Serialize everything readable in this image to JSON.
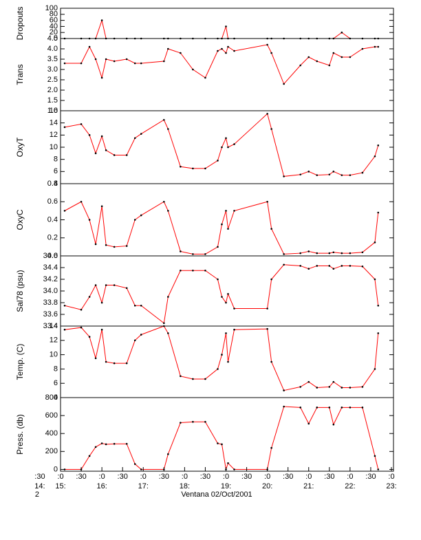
{
  "chart_data": [
    {
      "type": "line",
      "ylabel": "Dropouts",
      "xlim": [
        15,
        23.05
      ],
      "ylim": [
        0,
        100
      ],
      "yticks": [
        0,
        20,
        40,
        60,
        80,
        100
      ],
      "line_color": "#ff0000",
      "point_color": "#000000",
      "x": [
        15.1,
        15.5,
        15.7,
        15.85,
        16.0,
        16.1,
        16.3,
        16.6,
        16.8,
        16.95,
        17.5,
        17.6,
        17.9,
        18.2,
        18.5,
        18.8,
        18.9,
        19.0,
        19.05,
        19.2,
        20.0,
        20.1,
        20.4,
        20.8,
        21.0,
        21.2,
        21.5,
        21.6,
        21.8,
        22.0,
        22.3,
        22.6,
        22.68
      ],
      "values": [
        0,
        0,
        0,
        0,
        60,
        0,
        0,
        0,
        0,
        0,
        0,
        0,
        0,
        0,
        0,
        0,
        0,
        40,
        0,
        0,
        0,
        0,
        0,
        0,
        0,
        0,
        0,
        0,
        20,
        0,
        0,
        0,
        0
      ]
    },
    {
      "type": "line",
      "ylabel": "Trans",
      "xlim": [
        15,
        23.05
      ],
      "ylim": [
        1,
        4.5
      ],
      "yticks": [
        {
          "value": 1,
          "label": "1.0"
        },
        1.5,
        {
          "value": 2,
          "label": "2.0"
        },
        2.5,
        {
          "value": 3,
          "label": "3.0"
        },
        3.5,
        {
          "value": 4,
          "label": "4.0"
        },
        4.5
      ],
      "line_color": "#ff0000",
      "point_color": "#000000",
      "x": [
        15.1,
        15.5,
        15.7,
        15.85,
        16.0,
        16.1,
        16.3,
        16.6,
        16.8,
        16.95,
        17.5,
        17.6,
        17.9,
        18.2,
        18.5,
        18.8,
        18.9,
        19.0,
        19.05,
        19.2,
        20.0,
        20.1,
        20.4,
        20.8,
        21.0,
        21.2,
        21.5,
        21.6,
        21.8,
        22.0,
        22.3,
        22.6,
        22.68
      ],
      "values": [
        3.3,
        3.3,
        4.1,
        3.5,
        2.6,
        3.5,
        3.4,
        3.5,
        3.3,
        3.3,
        3.4,
        4.0,
        3.8,
        3.0,
        2.6,
        3.9,
        4.0,
        3.8,
        4.1,
        3.9,
        4.2,
        3.8,
        2.3,
        3.2,
        3.6,
        3.4,
        3.2,
        3.8,
        3.6,
        3.6,
        4.0,
        4.1,
        4.1
      ]
    },
    {
      "type": "line",
      "ylabel": "OxyT",
      "xlim": [
        15,
        23.05
      ],
      "ylim": [
        4,
        16
      ],
      "yticks": [
        4,
        6,
        8,
        10,
        12,
        14,
        16
      ],
      "line_color": "#ff0000",
      "point_color": "#000000",
      "x": [
        15.1,
        15.5,
        15.7,
        15.85,
        16.0,
        16.1,
        16.3,
        16.6,
        16.8,
        16.95,
        17.5,
        17.6,
        17.9,
        18.2,
        18.5,
        18.8,
        18.9,
        19.0,
        19.05,
        19.2,
        20.0,
        20.1,
        20.4,
        20.8,
        21.0,
        21.2,
        21.5,
        21.6,
        21.8,
        22.0,
        22.3,
        22.6,
        22.68
      ],
      "values": [
        13.3,
        13.8,
        12,
        9,
        11.8,
        9.5,
        8.7,
        8.7,
        11.5,
        12.2,
        14.5,
        13,
        6.8,
        6.5,
        6.5,
        7.8,
        10,
        11.5,
        10,
        10.5,
        15.5,
        13,
        5.2,
        5.5,
        6,
        5.4,
        5.5,
        6,
        5.4,
        5.4,
        5.8,
        8.5,
        10.3
      ]
    },
    {
      "type": "line",
      "ylabel": "OxyC",
      "xlim": [
        15,
        23.05
      ],
      "ylim": [
        0,
        0.8
      ],
      "yticks": [
        {
          "value": 0,
          "label": "0.0"
        },
        0.2,
        0.4,
        0.6,
        0.8
      ],
      "line_color": "#ff0000",
      "point_color": "#000000",
      "x": [
        15.1,
        15.5,
        15.7,
        15.85,
        16.0,
        16.1,
        16.3,
        16.6,
        16.8,
        16.95,
        17.5,
        17.6,
        17.9,
        18.2,
        18.5,
        18.8,
        18.9,
        19.0,
        19.05,
        19.2,
        20.0,
        20.1,
        20.4,
        20.8,
        21.0,
        21.2,
        21.5,
        21.6,
        21.8,
        22.0,
        22.3,
        22.6,
        22.68
      ],
      "values": [
        0.5,
        0.6,
        0.4,
        0.13,
        0.55,
        0.12,
        0.1,
        0.11,
        0.4,
        0.45,
        0.6,
        0.5,
        0.05,
        0.02,
        0.02,
        0.1,
        0.35,
        0.5,
        0.3,
        0.5,
        0.6,
        0.3,
        0.02,
        0.03,
        0.05,
        0.03,
        0.03,
        0.04,
        0.03,
        0.03,
        0.04,
        0.15,
        0.48
      ]
    },
    {
      "type": "line",
      "ylabel": "Sal78 (psu)",
      "xlim": [
        15,
        23.05
      ],
      "ylim": [
        33.4,
        34.6
      ],
      "yticks": [
        33.4,
        33.6,
        33.8,
        {
          "value": 34,
          "label": "34.0"
        },
        34.2,
        34.4,
        34.6
      ],
      "line_color": "#ff0000",
      "point_color": "#000000",
      "x": [
        15.1,
        15.5,
        15.7,
        15.85,
        16.0,
        16.1,
        16.3,
        16.6,
        16.8,
        16.95,
        17.5,
        17.6,
        17.9,
        18.2,
        18.5,
        18.8,
        18.9,
        19.0,
        19.05,
        19.2,
        20.0,
        20.1,
        20.4,
        20.8,
        21.0,
        21.2,
        21.5,
        21.6,
        21.8,
        22.0,
        22.3,
        22.6,
        22.68
      ],
      "values": [
        33.75,
        33.68,
        33.9,
        34.1,
        33.8,
        34.1,
        34.1,
        34.05,
        33.75,
        33.75,
        33.45,
        33.9,
        34.35,
        34.35,
        34.35,
        34.2,
        33.9,
        33.8,
        33.95,
        33.7,
        33.7,
        34.2,
        34.45,
        34.43,
        34.38,
        34.43,
        34.43,
        34.38,
        34.43,
        34.43,
        34.42,
        34.2,
        33.75
      ]
    },
    {
      "type": "line",
      "ylabel": "Temp. (C)",
      "xlim": [
        15,
        23.05
      ],
      "ylim": [
        4,
        14
      ],
      "yticks": [
        4,
        6,
        8,
        10,
        12,
        14
      ],
      "line_color": "#ff0000",
      "point_color": "#000000",
      "x": [
        15.1,
        15.5,
        15.7,
        15.85,
        16.0,
        16.1,
        16.3,
        16.6,
        16.8,
        16.95,
        17.5,
        17.6,
        17.9,
        18.2,
        18.5,
        18.8,
        18.9,
        19.0,
        19.05,
        19.2,
        20.0,
        20.1,
        20.4,
        20.8,
        21.0,
        21.2,
        21.5,
        21.6,
        21.8,
        22.0,
        22.3,
        22.6,
        22.68
      ],
      "values": [
        13.5,
        13.8,
        12.5,
        9.5,
        13.5,
        9,
        8.8,
        8.8,
        12,
        12.8,
        14,
        13,
        7,
        6.6,
        6.6,
        8,
        10,
        13,
        9,
        13.5,
        13.6,
        9,
        5,
        5.5,
        6.2,
        5.4,
        5.5,
        6.2,
        5.4,
        5.4,
        5.5,
        8,
        13
      ]
    },
    {
      "type": "line",
      "ylabel": "Press. (db)",
      "xlim": [
        15,
        23.05
      ],
      "ylim": [
        -20,
        800
      ],
      "yticks": [
        0,
        200,
        400,
        600,
        800
      ],
      "line_color": "#ff0000",
      "point_color": "#000000",
      "x": [
        15.1,
        15.5,
        15.7,
        15.85,
        16.0,
        16.1,
        16.3,
        16.6,
        16.8,
        16.95,
        17.5,
        17.6,
        17.9,
        18.2,
        18.5,
        18.8,
        18.9,
        19.0,
        19.05,
        19.2,
        20.0,
        20.1,
        20.4,
        20.8,
        21.0,
        21.2,
        21.5,
        21.6,
        21.8,
        22.0,
        22.3,
        22.6,
        22.68
      ],
      "values": [
        0,
        0,
        150,
        250,
        290,
        280,
        285,
        285,
        60,
        0,
        0,
        170,
        520,
        530,
        530,
        290,
        280,
        0,
        70,
        0,
        0,
        240,
        700,
        690,
        510,
        690,
        690,
        500,
        690,
        690,
        690,
        150,
        0
      ],
      "xticks": [
        {
          "value": 14.5,
          "label": ":30"
        },
        {
          "value": 15,
          "label": ":0"
        },
        {
          "value": 15.5,
          "label": ":30"
        },
        {
          "value": 16,
          "label": ":0"
        },
        {
          "value": 16.5,
          "label": ":30"
        },
        {
          "value": 17,
          "label": ":0"
        },
        {
          "value": 17.5,
          "label": ":30"
        },
        {
          "value": 18,
          "label": ":0"
        },
        {
          "value": 18.5,
          "label": ":30"
        },
        {
          "value": 19,
          "label": ":0"
        },
        {
          "value": 19.5,
          "label": ":30"
        },
        {
          "value": 20,
          "label": ":0"
        },
        {
          "value": 20.5,
          "label": ":30"
        },
        {
          "value": 21,
          "label": ":0"
        },
        {
          "value": 21.5,
          "label": ":30"
        },
        {
          "value": 22,
          "label": ":0"
        },
        {
          "value": 22.5,
          "label": ":30"
        },
        {
          "value": 23,
          "label": ":0"
        }
      ],
      "xticks_hours": [
        {
          "value": 14.5,
          "label": "14:"
        },
        {
          "value": 15,
          "label": "15:"
        },
        {
          "value": 16,
          "label": "16:"
        },
        {
          "value": 17,
          "label": "17:"
        },
        {
          "value": 18,
          "label": "18:"
        },
        {
          "value": 19,
          "label": "19:"
        },
        {
          "value": 20,
          "label": "20:"
        },
        {
          "value": 21,
          "label": "21:"
        },
        {
          "value": 22,
          "label": "22:"
        },
        {
          "value": 23,
          "label": "23:"
        }
      ],
      "x_sublabel": "2",
      "xlabel": "Ventana 02/Oct/2001"
    }
  ]
}
